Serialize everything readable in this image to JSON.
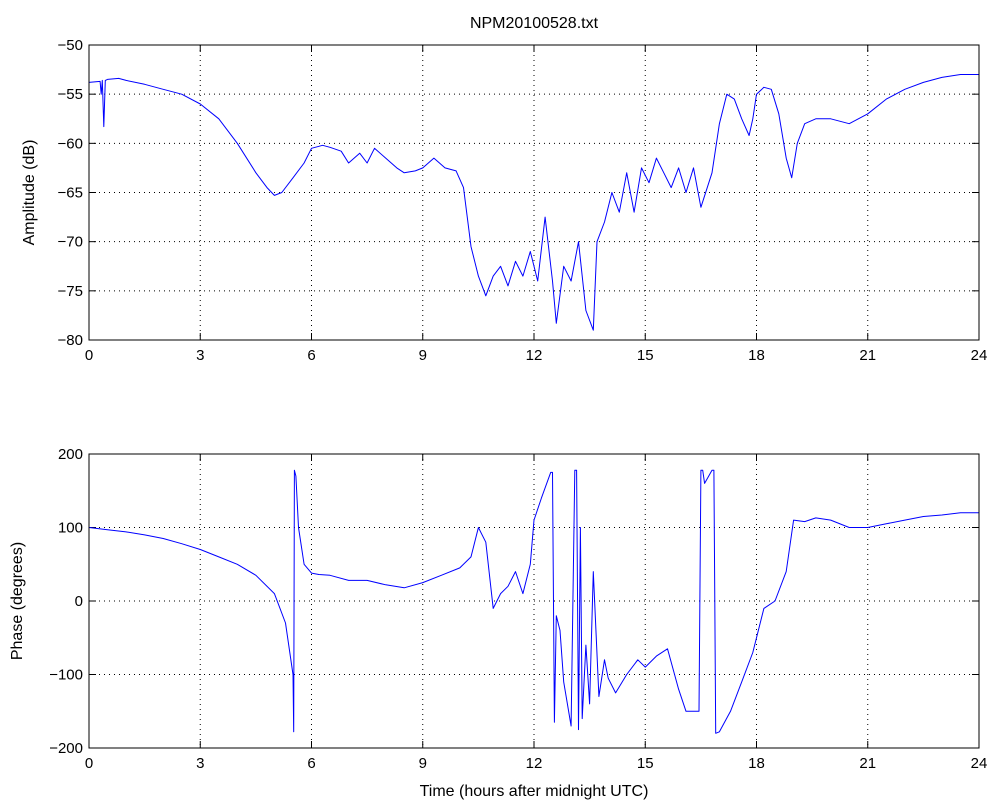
{
  "colors": {
    "series": "#0000ff",
    "axes": "#000000",
    "background": "#ffffff"
  },
  "chart_data": [
    {
      "type": "line",
      "title": "NPM20100528.txt",
      "xlabel": "",
      "ylabel": "Amplitude (dB)",
      "xlim": [
        0,
        24
      ],
      "ylim": [
        -80,
        -50
      ],
      "xticks": [
        0,
        3,
        6,
        9,
        12,
        15,
        18,
        21,
        24
      ],
      "yticks": [
        -80,
        -75,
        -70,
        -65,
        -60,
        -55,
        -50
      ],
      "xtick_labels": [
        "0",
        "3",
        "6",
        "9",
        "12",
        "15",
        "18",
        "21",
        "24"
      ],
      "ytick_labels": [
        "−80",
        "−75",
        "−70",
        "−65",
        "−60",
        "−55",
        "−50"
      ],
      "grid": true,
      "series": [
        {
          "x": [
            0,
            0.3,
            0.33,
            0.36,
            0.4,
            0.44,
            0.5,
            0.8,
            1,
            1.5,
            2,
            2.5,
            3,
            3.5,
            4,
            4.5,
            4.8,
            5,
            5.2,
            5.5,
            5.8,
            6,
            6.3,
            6.5,
            6.8,
            7,
            7.3,
            7.5,
            7.7,
            8,
            8.3,
            8.5,
            8.8,
            9,
            9.3,
            9.6,
            9.9,
            10.1,
            10.3,
            10.5,
            10.7,
            10.9,
            11.1,
            11.3,
            11.5,
            11.7,
            11.9,
            12.1,
            12.3,
            12.5,
            12.6,
            12.8,
            13,
            13.2,
            13.4,
            13.6,
            13.7,
            13.9,
            14.1,
            14.3,
            14.5,
            14.7,
            14.9,
            15.1,
            15.3,
            15.5,
            15.7,
            15.9,
            16.1,
            16.3,
            16.5,
            16.8,
            17,
            17.2,
            17.4,
            17.6,
            17.8,
            17.9,
            18,
            18.2,
            18.4,
            18.6,
            18.8,
            18.95,
            19.1,
            19.3,
            19.6,
            20,
            20.5,
            21,
            21.5,
            22,
            22.5,
            23,
            23.5,
            24
          ],
          "y": [
            -53.8,
            -53.7,
            -55,
            -53.6,
            -58.3,
            -53.6,
            -53.5,
            -53.4,
            -53.6,
            -54,
            -54.5,
            -55,
            -56,
            -57.5,
            -60,
            -63,
            -64.5,
            -65.3,
            -65,
            -63.5,
            -62,
            -60.5,
            -60.2,
            -60.4,
            -60.8,
            -62,
            -61,
            -62,
            -60.5,
            -61.5,
            -62.5,
            -63,
            -62.8,
            -62.5,
            -61.5,
            -62.5,
            -62.8,
            -64.5,
            -70.5,
            -73.5,
            -75.5,
            -73.5,
            -72.5,
            -74.5,
            -72,
            -73.5,
            -71,
            -74,
            -67.5,
            -74,
            -78.3,
            -72.5,
            -74,
            -70,
            -77,
            -79,
            -70,
            -68,
            -65,
            -67,
            -63,
            -67,
            -62.5,
            -64,
            -61.5,
            -63,
            -64.5,
            -62.5,
            -65,
            -62.5,
            -66.5,
            -63,
            -58,
            -55,
            -55.5,
            -57.5,
            -59.2,
            -57.5,
            -55,
            -54.3,
            -54.5,
            -57,
            -61.5,
            -63.5,
            -60,
            -58,
            -57.5,
            -57.5,
            -58,
            -57,
            -55.5,
            -54.5,
            -53.8,
            -53.3,
            -53,
            -53
          ]
        }
      ]
    },
    {
      "type": "line",
      "title": "",
      "xlabel": "Time (hours after midnight UTC)",
      "ylabel": "Phase (degrees)",
      "xlim": [
        0,
        24
      ],
      "ylim": [
        -200,
        200
      ],
      "xticks": [
        0,
        3,
        6,
        9,
        12,
        15,
        18,
        21,
        24
      ],
      "yticks": [
        -200,
        -100,
        0,
        100,
        200
      ],
      "xtick_labels": [
        "0",
        "3",
        "6",
        "9",
        "12",
        "15",
        "18",
        "21",
        "24"
      ],
      "ytick_labels": [
        "−200",
        "−100",
        "0",
        "100",
        "200"
      ],
      "grid": true,
      "series": [
        {
          "x": [
            0,
            0.5,
            1,
            1.5,
            2,
            2.5,
            3,
            3.5,
            4,
            4.5,
            5,
            5.3,
            5.5,
            5.52,
            5.54,
            5.58,
            5.65,
            5.8,
            6,
            6.2,
            6.5,
            7,
            7.5,
            8,
            8.5,
            9,
            9.5,
            10,
            10.3,
            10.5,
            10.7,
            10.9,
            11.1,
            11.3,
            11.5,
            11.7,
            11.9,
            12,
            12.2,
            12.45,
            12.5,
            12.55,
            12.6,
            12.7,
            12.8,
            13,
            13.1,
            13.15,
            13.2,
            13.25,
            13.3,
            13.4,
            13.5,
            13.6,
            13.75,
            13.9,
            14,
            14.2,
            14.5,
            14.8,
            15,
            15.3,
            15.6,
            15.9,
            16.1,
            16.3,
            16.45,
            16.5,
            16.55,
            16.6,
            16.8,
            16.85,
            16.9,
            17,
            17.3,
            17.6,
            17.9,
            18.2,
            18.5,
            18.8,
            19,
            19.3,
            19.6,
            20,
            20.5,
            21,
            21.5,
            22,
            22.5,
            23,
            23.5,
            24
          ],
          "y": [
            100,
            97,
            94,
            90,
            85,
            78,
            70,
            60,
            50,
            35,
            10,
            -30,
            -100,
            -178,
            178,
            170,
            100,
            50,
            38,
            36,
            35,
            28,
            28,
            22,
            18,
            25,
            35,
            45,
            60,
            100,
            80,
            -10,
            10,
            20,
            40,
            10,
            50,
            110,
            140,
            175,
            175,
            -165,
            -20,
            -40,
            -110,
            -170,
            178,
            178,
            -175,
            100,
            -160,
            -60,
            -140,
            40,
            -130,
            -80,
            -105,
            -125,
            -100,
            -80,
            -90,
            -75,
            -65,
            -120,
            -150,
            -150,
            -150,
            178,
            178,
            160,
            178,
            178,
            -180,
            -178,
            -150,
            -110,
            -70,
            -10,
            0,
            40,
            110,
            108,
            113,
            110,
            100,
            100,
            105,
            110,
            115,
            117,
            120,
            120
          ]
        }
      ]
    }
  ]
}
